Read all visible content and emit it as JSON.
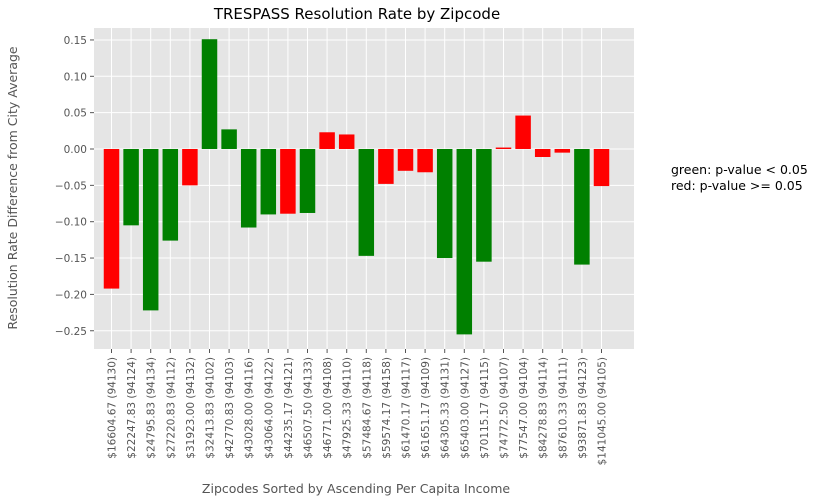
{
  "chart_data": {
    "type": "bar",
    "title": "TRESPASS Resolution Rate by Zipcode",
    "xlabel": "Zipcodes Sorted by Ascending Per Capita Income",
    "ylabel": "Resolution Rate Difference from City Average",
    "ylim": [
      -0.275,
      0.17
    ],
    "yticks": [
      0.15,
      0.1,
      0.05,
      0.0,
      -0.05,
      -0.1,
      -0.15,
      -0.2,
      -0.25
    ],
    "ytick_labels": [
      "0.15",
      "0.10",
      "0.05",
      "0.00",
      "−0.05",
      "−0.10",
      "−0.15",
      "−0.20",
      "−0.25"
    ],
    "grid": true,
    "categories": [
      "$16604.67  (94130)",
      "$22247.83  (94124)",
      "$24795.83  (94134)",
      "$27220.83  (94112)",
      "$31923.00  (94132)",
      "$32413.83  (94102)",
      "$42770.83  (94103)",
      "$43028.00  (94116)",
      "$43064.00  (94122)",
      "$44235.17  (94121)",
      "$46507.50  (94133)",
      "$46771.00  (94108)",
      "$47925.33  (94110)",
      "$57484.67  (94118)",
      "$59574.17  (94158)",
      "$61470.17  (94117)",
      "$61651.17  (94109)",
      "$64305.33  (94131)",
      "$65403.00  (94127)",
      "$70115.17  (94115)",
      "$74772.50  (94107)",
      "$77547.00  (94104)",
      "$84278.83  (94114)",
      "$87610.33  (94111)",
      "$93871.83  (94123)",
      "$141045.00  (94105)"
    ],
    "values": [
      -0.192,
      -0.105,
      -0.222,
      -0.126,
      -0.05,
      0.151,
      0.027,
      -0.108,
      -0.09,
      -0.089,
      -0.088,
      0.023,
      0.02,
      -0.147,
      -0.048,
      -0.03,
      -0.032,
      -0.15,
      -0.255,
      -0.155,
      0.002,
      0.046,
      -0.011,
      -0.005,
      -0.159,
      -0.051
    ],
    "significant": [
      false,
      true,
      true,
      true,
      false,
      true,
      true,
      true,
      true,
      false,
      true,
      false,
      false,
      true,
      false,
      false,
      false,
      true,
      true,
      true,
      false,
      false,
      false,
      false,
      true,
      false
    ],
    "colors": {
      "significant": "#008000",
      "not_significant": "#ff0000",
      "plot_bg": "#e5e5e5",
      "grid": "#ffffff"
    },
    "legend_lines": [
      "green: p-value < 0.05",
      "red: p-value >= 0.05"
    ],
    "legend_position": "right"
  }
}
